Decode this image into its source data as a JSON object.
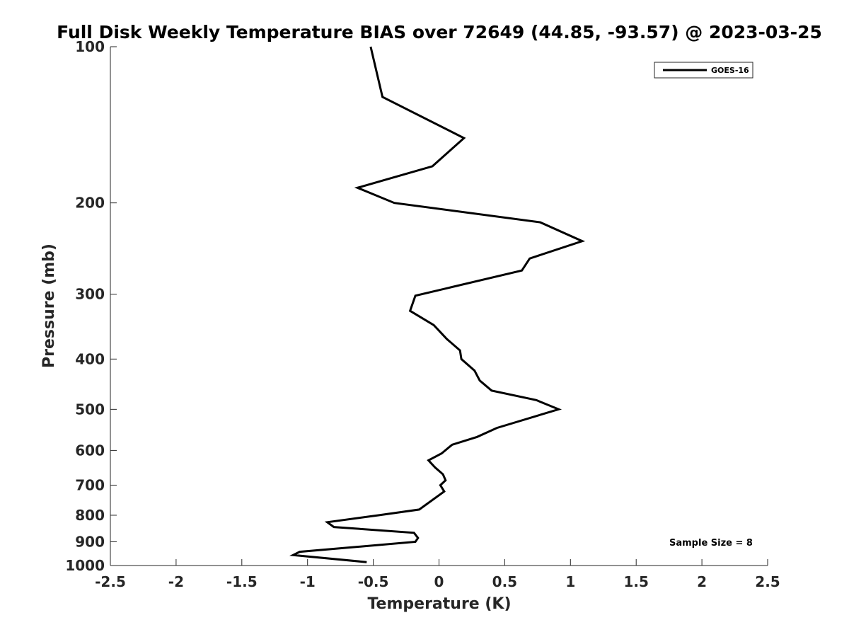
{
  "chart_data": {
    "type": "line",
    "title": "Full Disk Weekly Temperature BIAS over 72649 (44.85, -93.57) @ 2023-03-25",
    "xlabel": "Temperature (K)",
    "ylabel": "Pressure (mb)",
    "xlim": [
      -2.5,
      2.5
    ],
    "ylim": [
      100,
      1000
    ],
    "y_scale": "log",
    "y_reversed": true,
    "x_ticks": [
      -2.5,
      -2,
      -1.5,
      -1,
      -0.5,
      0,
      0.5,
      1,
      1.5,
      2,
      2.5
    ],
    "x_tick_labels": [
      "-2.5",
      "-2",
      "-1.5",
      "-1",
      "-0.5",
      "0",
      "0.5",
      "1",
      "1.5",
      "2",
      "2.5"
    ],
    "y_ticks": [
      100,
      200,
      300,
      400,
      500,
      600,
      700,
      800,
      900,
      1000
    ],
    "y_tick_labels": [
      "100",
      "200",
      "300",
      "400",
      "500",
      "600",
      "700",
      "800",
      "900",
      "1000"
    ],
    "grid": false,
    "legend_position": "top-right",
    "series": [
      {
        "name": "GOES-16",
        "color": "#000000",
        "points": [
          [
            -0.52,
            100
          ],
          [
            -0.43,
            125
          ],
          [
            0.19,
            150
          ],
          [
            -0.05,
            170
          ],
          [
            -0.62,
            187
          ],
          [
            -0.34,
            200
          ],
          [
            0.77,
            218
          ],
          [
            1.09,
            237
          ],
          [
            0.69,
            256
          ],
          [
            0.63,
            270
          ],
          [
            -0.18,
            302
          ],
          [
            -0.22,
            323
          ],
          [
            -0.04,
            344
          ],
          [
            0.06,
            366
          ],
          [
            0.16,
            385
          ],
          [
            0.17,
            400
          ],
          [
            0.27,
            421
          ],
          [
            0.31,
            440
          ],
          [
            0.4,
            460
          ],
          [
            0.74,
            480
          ],
          [
            0.91,
            500
          ],
          [
            0.44,
            543
          ],
          [
            0.29,
            565
          ],
          [
            0.1,
            585
          ],
          [
            0.02,
            608
          ],
          [
            -0.08,
            627
          ],
          [
            -0.03,
            647
          ],
          [
            0.03,
            667
          ],
          [
            0.05,
            685
          ],
          [
            0.01,
            700
          ],
          [
            0.04,
            720
          ],
          [
            -0.15,
            780
          ],
          [
            -0.46,
            800
          ],
          [
            -0.85,
            825
          ],
          [
            -0.8,
            843
          ],
          [
            -0.19,
            865
          ],
          [
            -0.16,
            885
          ],
          [
            -0.18,
            900
          ],
          [
            -1.06,
            941
          ],
          [
            -1.11,
            955
          ],
          [
            -0.55,
            985
          ]
        ]
      }
    ],
    "annotations": [
      {
        "text": "Sample Size = 8",
        "position": "bottom-right"
      }
    ]
  },
  "legend": {
    "label": "GOES-16"
  },
  "annotation": {
    "text": "Sample Size = 8"
  }
}
